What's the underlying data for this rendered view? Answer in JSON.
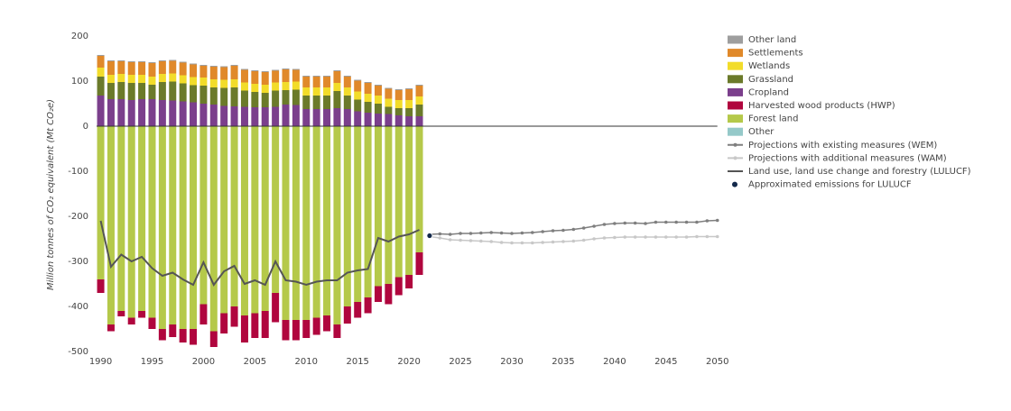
{
  "chart_data": {
    "type": "bar",
    "y_label": "Million tonnes of CO₂ equivalent (Mt CO₂e)",
    "x": [
      1990,
      1991,
      1992,
      1993,
      1994,
      1995,
      1996,
      1997,
      1998,
      1999,
      2000,
      2001,
      2002,
      2003,
      2004,
      2005,
      2006,
      2007,
      2008,
      2009,
      2010,
      2011,
      2012,
      2013,
      2014,
      2015,
      2016,
      2017,
      2018,
      2019,
      2020,
      2021
    ],
    "xlim": [
      1989.6,
      2050.2
    ],
    "xticks": [
      1990,
      1995,
      2000,
      2005,
      2010,
      2015,
      2020,
      2025,
      2030,
      2035,
      2040,
      2045,
      2050
    ],
    "ylim": [
      -500,
      200
    ],
    "yticks": [
      200,
      100,
      0,
      -100,
      -200,
      -300,
      -400,
      -500
    ],
    "grid": false,
    "legend": "right",
    "series": [
      {
        "name": "Other land",
        "type": "bar",
        "color": "#9e9e9e",
        "values": [
          2,
          2,
          2,
          2,
          2,
          2,
          2,
          2,
          2,
          2,
          2,
          2,
          2,
          2,
          2,
          2,
          2,
          2,
          2,
          2,
          2,
          2,
          2,
          2,
          2,
          2,
          2,
          2,
          2,
          2,
          2,
          2
        ]
      },
      {
        "name": "Settlements",
        "type": "bar",
        "color": "#e0892a",
        "values": [
          26,
          30,
          28,
          28,
          28,
          30,
          28,
          28,
          28,
          28,
          26,
          28,
          28,
          30,
          28,
          28,
          28,
          26,
          28,
          26,
          24,
          24,
          24,
          26,
          24,
          24,
          24,
          22,
          22,
          22,
          24,
          24
        ]
      },
      {
        "name": "Wetlands",
        "type": "bar",
        "color": "#f2dc2a",
        "values": [
          20,
          18,
          18,
          18,
          18,
          18,
          18,
          18,
          18,
          18,
          18,
          18,
          18,
          18,
          18,
          18,
          18,
          18,
          18,
          18,
          18,
          18,
          18,
          18,
          18,
          18,
          18,
          18,
          18,
          18,
          18,
          18
        ]
      },
      {
        "name": "Grassland",
        "type": "bar",
        "color": "#6b7a2a",
        "values": [
          42,
          36,
          38,
          38,
          36,
          32,
          40,
          42,
          40,
          38,
          40,
          38,
          40,
          42,
          36,
          34,
          32,
          36,
          32,
          34,
          30,
          30,
          30,
          38,
          30,
          26,
          24,
          22,
          16,
          16,
          18,
          26
        ]
      },
      {
        "name": "Cropland",
        "type": "bar",
        "color": "#7b3f8c",
        "values": [
          68,
          60,
          60,
          58,
          60,
          60,
          58,
          57,
          55,
          53,
          50,
          48,
          45,
          44,
          43,
          42,
          42,
          43,
          48,
          47,
          38,
          38,
          38,
          40,
          38,
          33,
          30,
          28,
          27,
          24,
          22,
          22
        ]
      },
      {
        "name": "Harvested wood products (HWP)",
        "type": "bar",
        "color": "#b0063e",
        "values": [
          -30,
          -15,
          -12,
          -15,
          -15,
          -25,
          -25,
          -28,
          -30,
          -35,
          -45,
          -35,
          -45,
          -45,
          -60,
          -55,
          -60,
          -65,
          -45,
          -45,
          -40,
          -38,
          -35,
          -30,
          -38,
          -35,
          -35,
          -35,
          -45,
          -40,
          -30,
          -50
        ]
      },
      {
        "name": "Forest land",
        "type": "bar",
        "color": "#b5c94a",
        "values": [
          -340,
          -440,
          -410,
          -425,
          -410,
          -425,
          -450,
          -440,
          -450,
          -450,
          -395,
          -455,
          -415,
          -400,
          -420,
          -415,
          -410,
          -370,
          -430,
          -430,
          -430,
          -425,
          -420,
          -440,
          -400,
          -390,
          -380,
          -355,
          -350,
          -335,
          -330,
          -280
        ]
      },
      {
        "name": "Other",
        "type": "bar",
        "color": "#95c9c9",
        "values": [
          0,
          0,
          0,
          0,
          0,
          0,
          0,
          0,
          0,
          0,
          0,
          0,
          0,
          0,
          0,
          0,
          0,
          0,
          0,
          0,
          0,
          0,
          0,
          0,
          0,
          0,
          0,
          0,
          0,
          0,
          0,
          0
        ]
      },
      {
        "name": "Projections with existing measures (WEM)",
        "type": "line-markers",
        "color": "#7f7f7f",
        "x": [
          2022,
          2023,
          2024,
          2025,
          2026,
          2027,
          2028,
          2029,
          2030,
          2031,
          2032,
          2033,
          2034,
          2035,
          2036,
          2037,
          2038,
          2039,
          2040,
          2041,
          2042,
          2043,
          2044,
          2045,
          2046,
          2047,
          2048,
          2049,
          2050
        ],
        "values": [
          -240,
          -239,
          -240,
          -238,
          -238,
          -237,
          -236,
          -237,
          -238,
          -237,
          -236,
          -234,
          -232,
          -231,
          -229,
          -226,
          -222,
          -218,
          -216,
          -215,
          -215,
          -216,
          -213,
          -213,
          -213,
          -213,
          -213,
          -210,
          -209
        ]
      },
      {
        "name": "Projections with additional measures (WAM)",
        "type": "line-markers",
        "color": "#c8c8c8",
        "x": [
          2022,
          2023,
          2024,
          2025,
          2026,
          2027,
          2028,
          2029,
          2030,
          2031,
          2032,
          2033,
          2034,
          2035,
          2036,
          2037,
          2038,
          2039,
          2040,
          2041,
          2042,
          2043,
          2044,
          2045,
          2046,
          2047,
          2048,
          2049,
          2050
        ],
        "values": [
          -245,
          -248,
          -252,
          -253,
          -254,
          -255,
          -256,
          -258,
          -259,
          -259,
          -259,
          -258,
          -257,
          -256,
          -255,
          -253,
          -250,
          -248,
          -247,
          -246,
          -246,
          -246,
          -246,
          -246,
          -246,
          -246,
          -245,
          -245,
          -245
        ]
      },
      {
        "name": "Land use, land use change and forestry (LULUCF)",
        "type": "line",
        "color": "#555555",
        "values": [
          -210,
          -312,
          -285,
          -300,
          -290,
          -315,
          -332,
          -325,
          -340,
          -352,
          -302,
          -352,
          -322,
          -310,
          -350,
          -342,
          -352,
          -300,
          -342,
          -345,
          -352,
          -345,
          -342,
          -342,
          -325,
          -320,
          -317,
          -248,
          -256,
          -245,
          -240,
          -230
        ]
      },
      {
        "name": "Approximated emissions for LULUCF",
        "type": "scatter",
        "color": "#13294b",
        "x": [
          2022
        ],
        "values": [
          -243
        ]
      }
    ]
  }
}
